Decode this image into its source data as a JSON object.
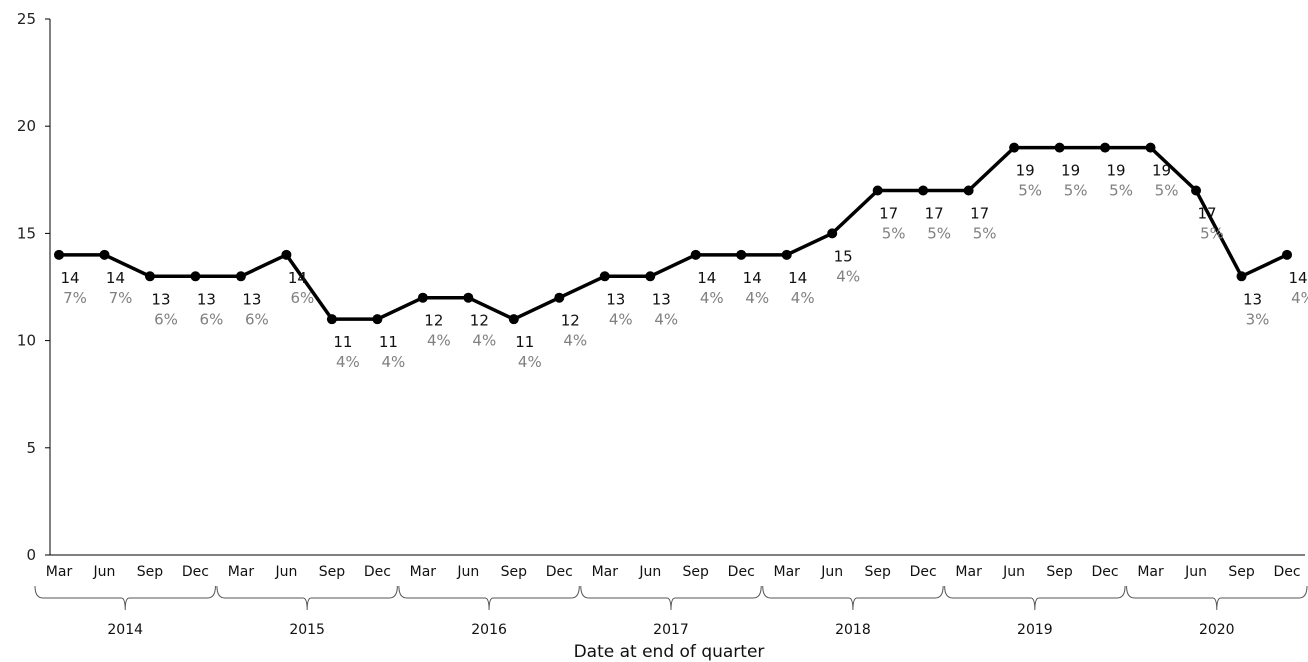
{
  "chart_data": {
    "type": "line",
    "xlabel": "Date at end of quarter",
    "ylabel": "",
    "ylim": [
      0,
      25
    ],
    "yticks": [
      "0",
      "5",
      "10",
      "15",
      "20",
      "25"
    ],
    "grid": false,
    "legend": "none",
    "line_color": "#000000",
    "percent_color": "#808080",
    "x": [
      "Mar 2014",
      "Jun 2014",
      "Sep 2014",
      "Dec 2014",
      "Mar 2015",
      "Jun 2015",
      "Sep 2015",
      "Dec 2015",
      "Mar 2016",
      "Jun 2016",
      "Sep 2016",
      "Dec 2016",
      "Mar 2017",
      "Jun 2017",
      "Sep 2017",
      "Dec 2017",
      "Mar 2018",
      "Jun 2018",
      "Sep 2018",
      "Dec 2018",
      "Mar 2019",
      "Jun 2019",
      "Sep 2019",
      "Dec 2019",
      "Mar 2020",
      "Jun 2020",
      "Sep 2020",
      "Dec 2020"
    ],
    "months": [
      "Mar",
      "Jun",
      "Sep",
      "Dec",
      "Mar",
      "Jun",
      "Sep",
      "Dec",
      "Mar",
      "Jun",
      "Sep",
      "Dec",
      "Mar",
      "Jun",
      "Sep",
      "Dec",
      "Mar",
      "Jun",
      "Sep",
      "Dec",
      "Mar",
      "Jun",
      "Sep",
      "Dec",
      "Mar",
      "Jun",
      "Sep",
      "Dec"
    ],
    "years": [
      "2014",
      "2015",
      "2016",
      "2017",
      "2018",
      "2019",
      "2020"
    ],
    "values": [
      14,
      14,
      13,
      13,
      13,
      14,
      11,
      11,
      12,
      12,
      11,
      12,
      13,
      13,
      14,
      14,
      14,
      15,
      17,
      17,
      17,
      19,
      19,
      19,
      19,
      17,
      13,
      14
    ],
    "value_labels": [
      "14",
      "14",
      "13",
      "13",
      "13",
      "14",
      "11",
      "11",
      "12",
      "12",
      "11",
      "12",
      "13",
      "13",
      "14",
      "14",
      "14",
      "15",
      "17",
      "17",
      "17",
      "19",
      "19",
      "19",
      "19",
      "17",
      "13",
      "14"
    ],
    "percent_labels": [
      "7%",
      "7%",
      "6%",
      "6%",
      "6%",
      "6%",
      "4%",
      "4%",
      "4%",
      "4%",
      "4%",
      "4%",
      "4%",
      "4%",
      "4%",
      "4%",
      "4%",
      "4%",
      "5%",
      "5%",
      "5%",
      "5%",
      "5%",
      "5%",
      "5%",
      "5%",
      "3%",
      "4%"
    ]
  }
}
